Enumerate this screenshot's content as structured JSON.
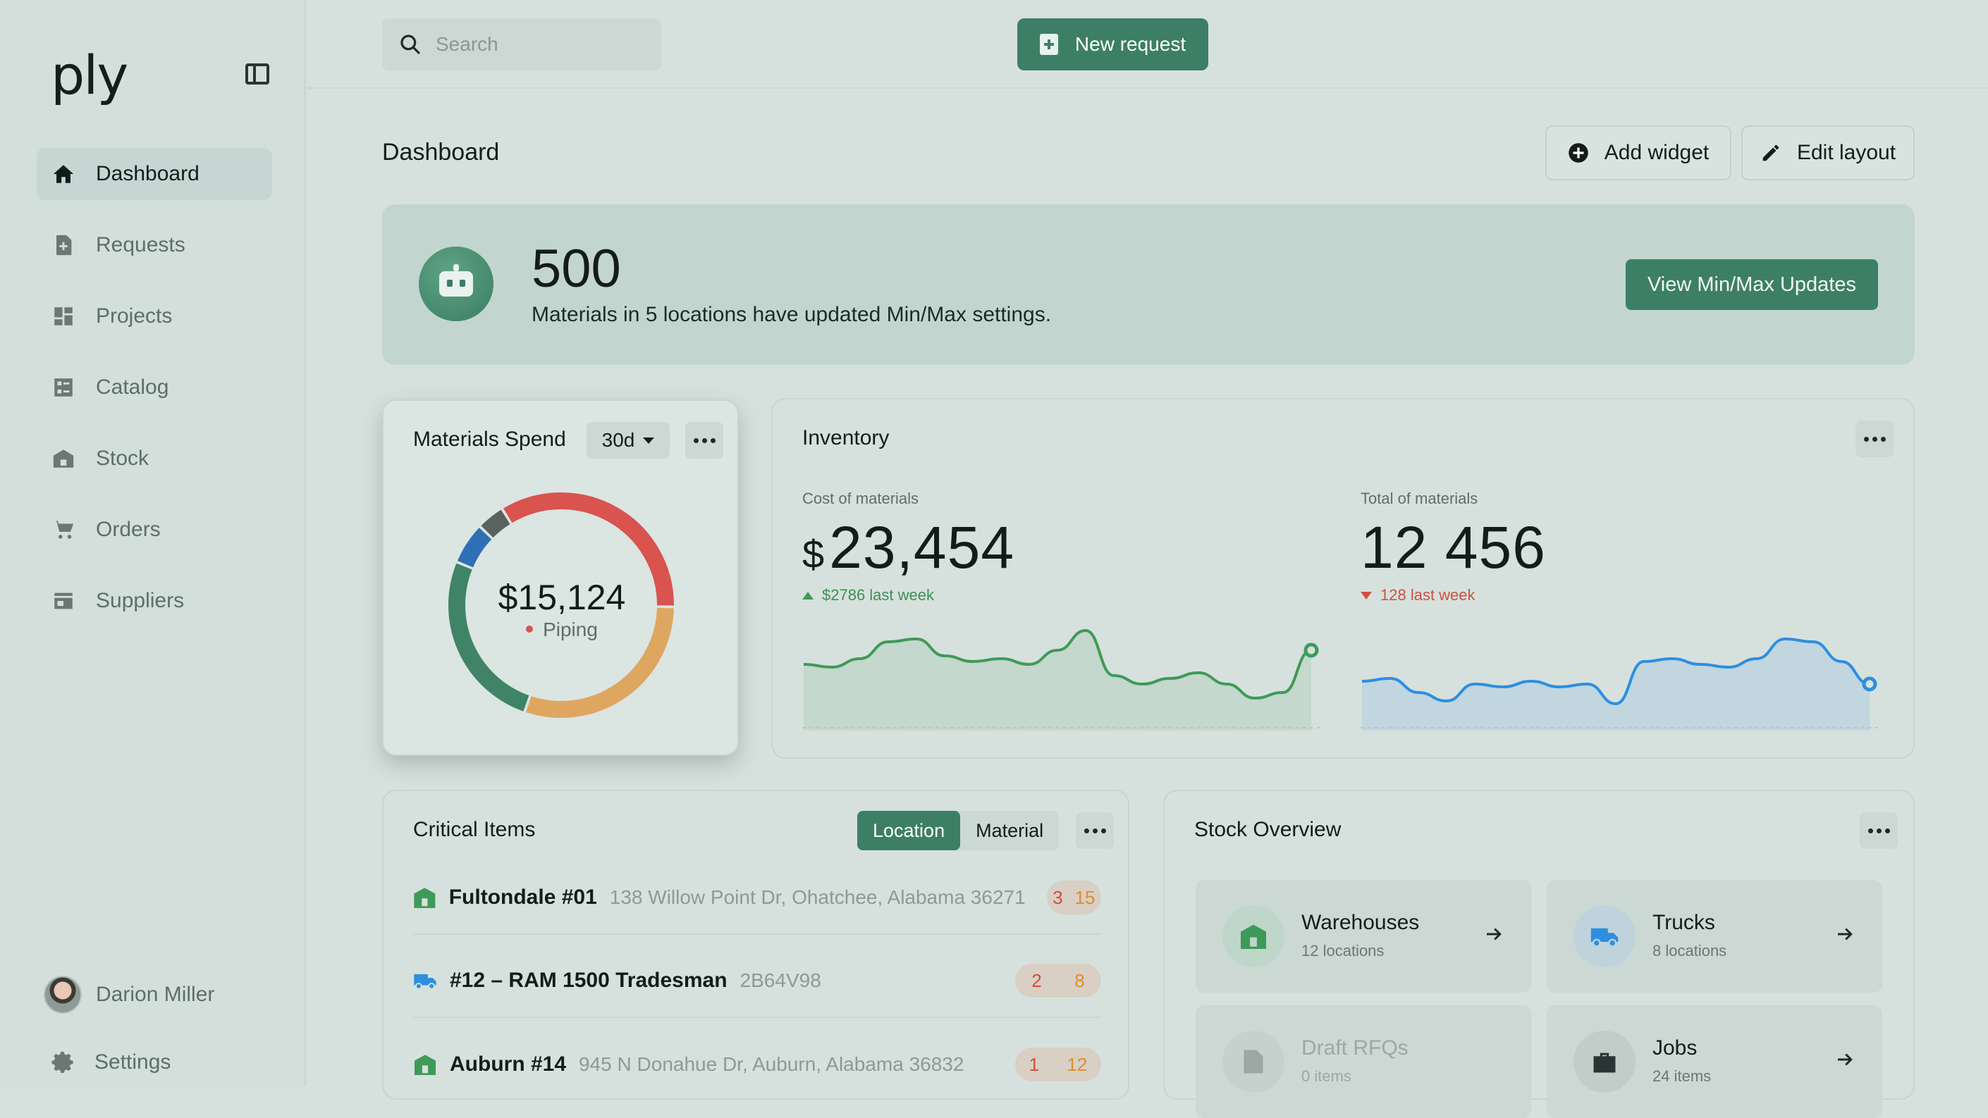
{
  "app": {
    "logo": "ply"
  },
  "sidebar": {
    "items": [
      {
        "label": "Dashboard",
        "icon": "home-icon",
        "active": true
      },
      {
        "label": "Requests",
        "icon": "request-icon"
      },
      {
        "label": "Projects",
        "icon": "projects-icon"
      },
      {
        "label": "Catalog",
        "icon": "catalog-icon"
      },
      {
        "label": "Stock",
        "icon": "warehouse-icon"
      },
      {
        "label": "Orders",
        "icon": "cart-icon"
      },
      {
        "label": "Suppliers",
        "icon": "store-icon"
      }
    ],
    "user": {
      "name": "Darion Miller"
    },
    "settings_label": "Settings"
  },
  "header": {
    "search_placeholder": "Search",
    "new_request_label": "New request"
  },
  "page": {
    "title": "Dashboard",
    "add_widget_label": "Add widget",
    "edit_layout_label": "Edit layout"
  },
  "banner": {
    "count": "500",
    "text": "Materials in 5 locations have updated Min/Max settings.",
    "button_label": "View Min/Max Updates"
  },
  "spend": {
    "title": "Materials Spend",
    "range": "30d",
    "value": "$15,124",
    "selected_label": "Piping",
    "segments": [
      {
        "name": "Piping",
        "value": 34,
        "color": "#d9534f"
      },
      {
        "name": "",
        "value": 30,
        "color": "#dfa660"
      },
      {
        "name": "",
        "value": 26,
        "color": "#3f8466"
      },
      {
        "name": "",
        "value": 6,
        "color": "#2f6fb5"
      },
      {
        "name": "",
        "value": 4,
        "color": "#5a6260"
      }
    ]
  },
  "inventory": {
    "title": "Inventory",
    "cost": {
      "label": "Cost of materials",
      "currency": "$",
      "value": "23,454",
      "delta": "$2786 last week",
      "color": "#3f9a57"
    },
    "total": {
      "label": "Total of materials",
      "value": "12 456",
      "delta": "128 last week",
      "color": "#2d8fe0"
    }
  },
  "chart_data": [
    {
      "type": "area",
      "title": "",
      "series": [
        {
          "name": "",
          "values": [
            42,
            40,
            46,
            58,
            60,
            48,
            44,
            46,
            42,
            52,
            66,
            34,
            28,
            32,
            36,
            28,
            18,
            22,
            52
          ]
        }
      ]
    },
    {
      "type": "area",
      "title": "",
      "series": [
        {
          "name": "",
          "values": [
            30,
            32,
            22,
            16,
            28,
            26,
            30,
            26,
            28,
            14,
            44,
            46,
            42,
            40,
            46,
            60,
            58,
            44,
            28
          ]
        }
      ]
    }
  ],
  "critical": {
    "title": "Critical Items",
    "tabs": [
      "Location",
      "Material"
    ],
    "rows": [
      {
        "type": "warehouse",
        "name": "Fultondale #01",
        "detail": "138 Willow Point Dr, Ohatchee, Alabama 36271",
        "a": "3",
        "b": "15"
      },
      {
        "type": "truck",
        "name": "#12 – RAM 1500 Tradesman",
        "detail": "2B64V98",
        "a": "2",
        "b": "8"
      },
      {
        "type": "warehouse",
        "name": "Auburn #14",
        "detail": "945 N Donahue Dr, Auburn, Alabama 36832",
        "a": "1",
        "b": "12"
      }
    ]
  },
  "stock": {
    "title": "Stock Overview",
    "tiles": [
      {
        "title": "Warehouses",
        "sub": "12 locations",
        "icon": "warehouse-icon"
      },
      {
        "title": "Trucks",
        "sub": "8 locations",
        "icon": "truck-icon"
      },
      {
        "title": "Draft RFQs",
        "sub": "0 items",
        "icon": "document-icon"
      },
      {
        "title": "Jobs",
        "sub": "24 items",
        "icon": "briefcase-icon"
      }
    ]
  }
}
